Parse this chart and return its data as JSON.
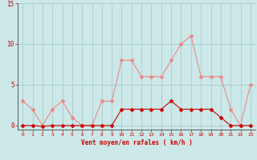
{
  "hours": [
    0,
    1,
    2,
    3,
    4,
    5,
    6,
    7,
    8,
    9,
    10,
    11,
    12,
    13,
    14,
    15,
    16,
    17,
    18,
    19,
    20,
    21,
    22,
    23
  ],
  "wind_avg": [
    0,
    0,
    -0.1,
    0,
    0,
    0,
    0,
    0,
    0,
    0,
    2,
    2,
    2,
    2,
    2,
    3,
    2,
    2,
    2,
    2,
    1,
    0,
    0,
    0
  ],
  "wind_gust": [
    3,
    2,
    0,
    2,
    3,
    1,
    0,
    0,
    3,
    3,
    8,
    8,
    6,
    6,
    6,
    8,
    10,
    11,
    6,
    6,
    6,
    2,
    0,
    5
  ],
  "xlabel": "Vent moyen/en rafales ( km/h )",
  "ylim": [
    -0.5,
    15
  ],
  "yticks": [
    0,
    5,
    10,
    15
  ],
  "bg_color": "#cce8e8",
  "grid_color": "#aacccc",
  "avg_color": "#cc0000",
  "gust_color": "#ee8888",
  "tick_label_color": "#cc0000",
  "xlabel_color": "#cc0000",
  "arrow_row_color": "#cc0000"
}
